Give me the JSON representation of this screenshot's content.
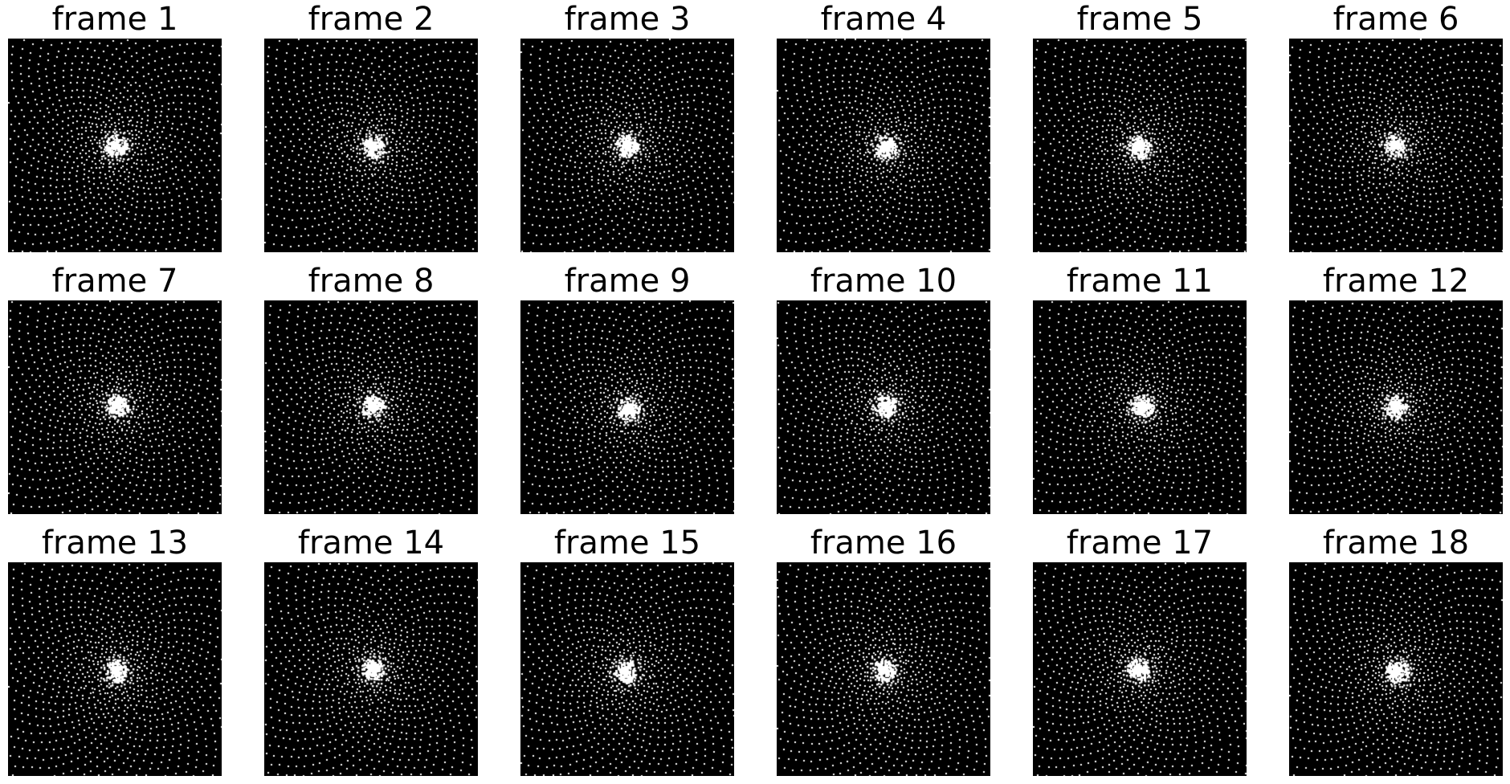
{
  "figure": {
    "background_color": "#ffffff",
    "panel_background_color": "#000000",
    "point_color": "#ffffff",
    "rows": 3,
    "columns": 6
  },
  "frames": [
    {
      "title": "frame 1"
    },
    {
      "title": "frame 2"
    },
    {
      "title": "frame 3"
    },
    {
      "title": "frame 4"
    },
    {
      "title": "frame 5"
    },
    {
      "title": "frame 6"
    },
    {
      "title": "frame 7"
    },
    {
      "title": "frame 8"
    },
    {
      "title": "frame 9"
    },
    {
      "title": "frame 10"
    },
    {
      "title": "frame 11"
    },
    {
      "title": "frame 12"
    },
    {
      "title": "frame 13"
    },
    {
      "title": "frame 14"
    },
    {
      "title": "frame 15"
    },
    {
      "title": "frame 16"
    },
    {
      "title": "frame 17"
    },
    {
      "title": "frame 18"
    }
  ]
}
